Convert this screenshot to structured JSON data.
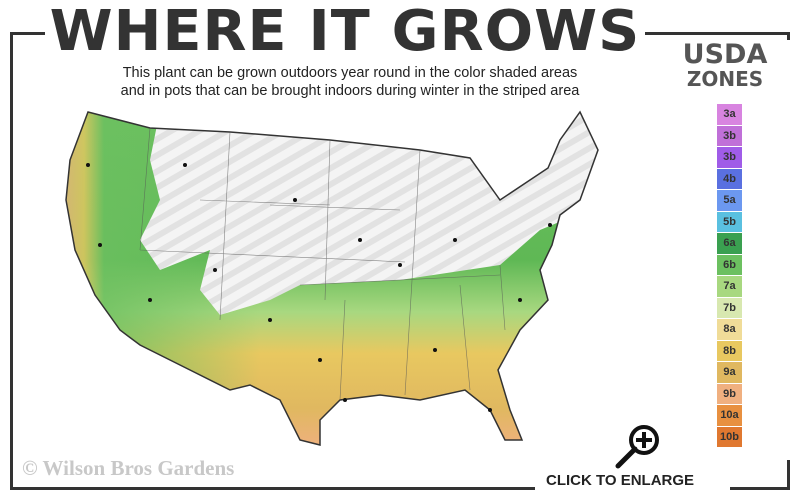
{
  "header": {
    "title": "WHERE IT GROWS",
    "subtitle_line1": "This plant can be grown outdoors year round in the color shaded areas",
    "subtitle_line2": "and in pots that can be brought indoors during winter in the striped area"
  },
  "legend": {
    "title_line1": "USDA",
    "title_line2": "ZONES",
    "zones": [
      {
        "label": "3a",
        "color": "#d884e0"
      },
      {
        "label": "3b",
        "color": "#c070d8"
      },
      {
        "label": "3b",
        "color": "#a05ce8"
      },
      {
        "label": "4b",
        "color": "#5a70e0"
      },
      {
        "label": "5a",
        "color": "#6c98f0"
      },
      {
        "label": "5b",
        "color": "#5ac0e0"
      },
      {
        "label": "6a",
        "color": "#3aa050"
      },
      {
        "label": "6b",
        "color": "#6cc060"
      },
      {
        "label": "7a",
        "color": "#a8d880"
      },
      {
        "label": "7b",
        "color": "#d8e8b0"
      },
      {
        "label": "8a",
        "color": "#f0dc98"
      },
      {
        "label": "8b",
        "color": "#e8c860"
      },
      {
        "label": "9a",
        "color": "#e0b860"
      },
      {
        "label": "9b",
        "color": "#f0b080"
      },
      {
        "label": "10a",
        "color": "#e89040"
      },
      {
        "label": "10b",
        "color": "#e07830"
      }
    ]
  },
  "footer": {
    "copyright": "© Wilson Bros Gardens",
    "enlarge_label": "CLICK TO ENLARGE",
    "enlarge_icon": "magnifier-plus-icon"
  }
}
